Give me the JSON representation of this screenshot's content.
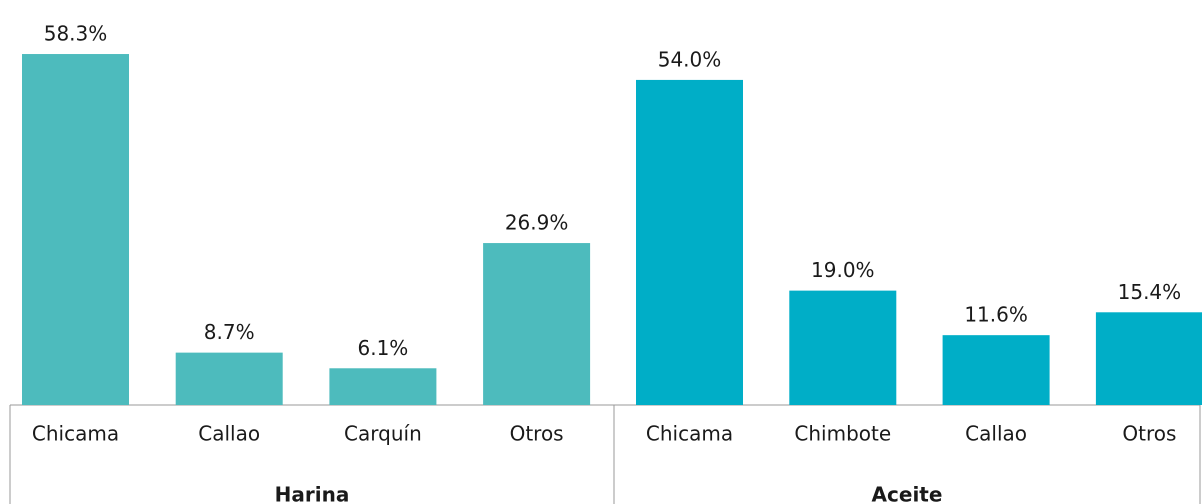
{
  "chart_data": {
    "type": "bar",
    "groups": [
      {
        "name": "Harina",
        "color": "#4dbbbd",
        "categories": [
          "Chicama",
          "Callao",
          "Carquín",
          "Otros"
        ],
        "values": [
          58.3,
          8.7,
          6.1,
          26.9
        ],
        "value_labels": [
          "58.3%",
          "8.7%",
          "6.1%",
          "26.9%"
        ]
      },
      {
        "name": "Aceite",
        "color": "#00aec7",
        "categories": [
          "Chicama",
          "Chimbote",
          "Callao",
          "Otros"
        ],
        "values": [
          54.0,
          19.0,
          11.6,
          15.4
        ],
        "value_labels": [
          "54.0%",
          "19.0%",
          "11.6%",
          "15.4%"
        ]
      }
    ]
  }
}
